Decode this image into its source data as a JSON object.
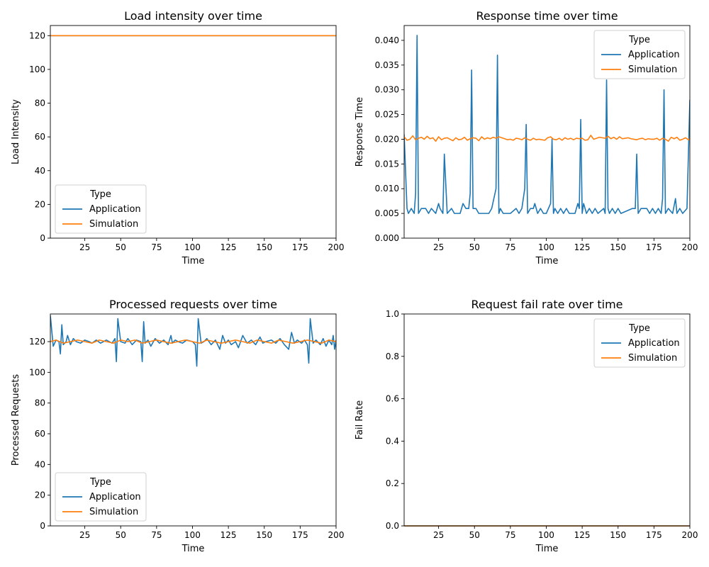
{
  "legend": {
    "title": "Type",
    "entries": [
      "Application",
      "Simulation"
    ]
  },
  "colors": {
    "Application": "#1f77b4",
    "Simulation": "#ff7f0e"
  },
  "chart_data": [
    {
      "type": "line",
      "title": "Load intensity over time",
      "xlabel": "Time",
      "ylabel": "Load Intensity",
      "xlim": [
        1,
        200
      ],
      "ylim": [
        0,
        126
      ],
      "xticks": [
        25,
        50,
        75,
        100,
        125,
        150,
        175,
        200
      ],
      "yticks": [
        0,
        20,
        40,
        60,
        80,
        100,
        120
      ],
      "legend_placement": "lower-left",
      "series": [
        {
          "name": "Application",
          "x": [
            1,
            200
          ],
          "y": [
            120,
            120
          ]
        },
        {
          "name": "Simulation",
          "x": [
            1,
            200
          ],
          "y": [
            120,
            120
          ]
        }
      ]
    },
    {
      "type": "line",
      "title": "Response time over time",
      "xlabel": "Time",
      "ylabel": "Response Time",
      "xlim": [
        1,
        200
      ],
      "ylim": [
        0,
        0.043
      ],
      "xticks": [
        25,
        50,
        75,
        100,
        125,
        150,
        175,
        200
      ],
      "yticks": [
        0.0,
        0.005,
        0.01,
        0.015,
        0.02,
        0.025,
        0.03,
        0.035,
        0.04
      ],
      "ytick_format": 3,
      "legend_placement": "upper-right",
      "series": [
        {
          "name": "Application",
          "x": [
            1,
            3,
            4,
            6,
            8,
            9,
            10,
            11,
            13,
            16,
            18,
            20,
            23,
            25,
            26,
            28,
            29,
            31,
            34,
            36,
            40,
            42,
            44,
            46,
            47,
            48,
            49,
            51,
            53,
            60,
            62,
            65,
            66,
            67,
            68,
            70,
            75,
            79,
            81,
            83,
            85,
            86,
            87,
            89,
            91,
            92,
            94,
            96,
            98,
            100,
            103,
            104,
            105,
            106,
            108,
            110,
            112,
            114,
            116,
            120,
            122,
            123,
            124,
            125,
            126,
            128,
            130,
            132,
            134,
            136,
            140,
            141,
            142,
            143,
            144,
            146,
            148,
            150,
            152,
            160,
            162,
            163,
            164,
            166,
            170,
            172,
            174,
            176,
            178,
            180,
            181,
            182,
            183,
            185,
            188,
            190,
            191,
            193,
            195,
            198,
            200
          ],
          "y": [
            0.021,
            0.006,
            0.005,
            0.006,
            0.005,
            0.009,
            0.041,
            0.005,
            0.006,
            0.006,
            0.005,
            0.006,
            0.005,
            0.007,
            0.006,
            0.005,
            0.017,
            0.005,
            0.006,
            0.005,
            0.005,
            0.007,
            0.006,
            0.006,
            0.009,
            0.034,
            0.006,
            0.006,
            0.005,
            0.005,
            0.006,
            0.01,
            0.037,
            0.005,
            0.006,
            0.005,
            0.005,
            0.006,
            0.005,
            0.006,
            0.01,
            0.023,
            0.005,
            0.006,
            0.006,
            0.007,
            0.005,
            0.006,
            0.005,
            0.005,
            0.007,
            0.02,
            0.005,
            0.006,
            0.005,
            0.006,
            0.005,
            0.006,
            0.005,
            0.005,
            0.007,
            0.006,
            0.024,
            0.005,
            0.007,
            0.005,
            0.006,
            0.005,
            0.006,
            0.005,
            0.006,
            0.005,
            0.032,
            0.006,
            0.005,
            0.006,
            0.005,
            0.006,
            0.005,
            0.006,
            0.006,
            0.017,
            0.005,
            0.006,
            0.006,
            0.005,
            0.006,
            0.005,
            0.006,
            0.005,
            0.008,
            0.03,
            0.005,
            0.006,
            0.005,
            0.008,
            0.005,
            0.006,
            0.005,
            0.006,
            0.028
          ]
        },
        {
          "name": "Simulation",
          "x": [
            1,
            3,
            5,
            7,
            9,
            11,
            13,
            15,
            17,
            19,
            21,
            23,
            25,
            27,
            29,
            31,
            33,
            35,
            37,
            39,
            41,
            43,
            45,
            47,
            49,
            51,
            53,
            55,
            57,
            59,
            61,
            63,
            65,
            67,
            69,
            71,
            73,
            75,
            77,
            79,
            81,
            83,
            85,
            87,
            89,
            91,
            93,
            95,
            97,
            99,
            101,
            103,
            105,
            107,
            109,
            111,
            113,
            115,
            117,
            119,
            121,
            123,
            125,
            127,
            129,
            131,
            133,
            135,
            137,
            139,
            141,
            143,
            145,
            147,
            149,
            151,
            153,
            155,
            157,
            159,
            161,
            163,
            165,
            167,
            169,
            171,
            173,
            175,
            177,
            179,
            181,
            183,
            185,
            187,
            189,
            191,
            193,
            195,
            197,
            199,
            200
          ],
          "y": [
            0.0205,
            0.0198,
            0.02,
            0.0207,
            0.0199,
            0.0202,
            0.0204,
            0.02,
            0.0206,
            0.0201,
            0.0203,
            0.0196,
            0.0205,
            0.0199,
            0.0202,
            0.0203,
            0.02,
            0.0197,
            0.0203,
            0.0199,
            0.02,
            0.0204,
            0.0198,
            0.0201,
            0.0203,
            0.0202,
            0.0197,
            0.0205,
            0.02,
            0.0203,
            0.0201,
            0.0204,
            0.0202,
            0.0205,
            0.0203,
            0.0201,
            0.0199,
            0.02,
            0.0198,
            0.0202,
            0.0201,
            0.0199,
            0.0203,
            0.02,
            0.0198,
            0.0202,
            0.0199,
            0.02,
            0.0199,
            0.0198,
            0.0203,
            0.0205,
            0.02,
            0.0199,
            0.0202,
            0.0198,
            0.0203,
            0.02,
            0.0202,
            0.0199,
            0.0202,
            0.0201,
            0.0202,
            0.0198,
            0.0199,
            0.0208,
            0.02,
            0.0202,
            0.0204,
            0.0203,
            0.0202,
            0.0206,
            0.0201,
            0.0204,
            0.02,
            0.0205,
            0.0201,
            0.0202,
            0.0203,
            0.0201,
            0.02,
            0.0199,
            0.0201,
            0.0202,
            0.0199,
            0.0201,
            0.02,
            0.02,
            0.0202,
            0.0198,
            0.0202,
            0.02,
            0.0196,
            0.0204,
            0.0201,
            0.0204,
            0.0198,
            0.02,
            0.0203,
            0.0199,
            0.0202
          ]
        }
      ]
    },
    {
      "type": "line",
      "title": "Processed requests over time",
      "xlabel": "Time",
      "ylabel": "Processed Requests",
      "xlim": [
        1,
        200
      ],
      "ylim": [
        0,
        138
      ],
      "xticks": [
        25,
        50,
        75,
        100,
        125,
        150,
        175,
        200
      ],
      "yticks": [
        0,
        20,
        40,
        60,
        80,
        100,
        120
      ],
      "legend_placement": "lower-left",
      "series": [
        {
          "name": "Application",
          "x": [
            1,
            3,
            5,
            7,
            8,
            9,
            10,
            12,
            13,
            15,
            17,
            19,
            22,
            25,
            28,
            30,
            33,
            36,
            40,
            44,
            46,
            47,
            48,
            50,
            53,
            55,
            58,
            61,
            64,
            65,
            66,
            67,
            69,
            71,
            74,
            77,
            80,
            83,
            85,
            86,
            88,
            90,
            93,
            96,
            100,
            102,
            103,
            104,
            106,
            108,
            110,
            113,
            116,
            119,
            121,
            123,
            125,
            127,
            130,
            132,
            135,
            138,
            141,
            144,
            147,
            149,
            151,
            155,
            158,
            161,
            164,
            167,
            169,
            171,
            173,
            176,
            178,
            180,
            181,
            182,
            184,
            186,
            189,
            191,
            193,
            195,
            197,
            198,
            199,
            200
          ],
          "y": [
            137,
            117,
            121,
            120,
            112,
            131,
            118,
            120,
            124,
            118,
            122,
            120,
            119,
            121,
            120,
            119,
            121,
            119,
            121,
            119,
            122,
            107,
            135,
            120,
            119,
            122,
            118,
            121,
            120,
            107,
            133,
            119,
            121,
            117,
            122,
            119,
            121,
            118,
            124,
            119,
            121,
            120,
            119,
            121,
            120,
            118,
            104,
            135,
            119,
            120,
            122,
            118,
            121,
            115,
            124,
            119,
            121,
            118,
            120,
            116,
            124,
            119,
            121,
            118,
            123,
            119,
            120,
            121,
            119,
            122,
            118,
            115,
            126,
            119,
            121,
            119,
            121,
            118,
            106,
            135,
            119,
            121,
            118,
            122,
            117,
            121,
            118,
            124,
            115,
            121
          ]
        },
        {
          "name": "Simulation",
          "x": [
            1,
            5,
            10,
            15,
            20,
            25,
            30,
            35,
            40,
            45,
            50,
            55,
            60,
            65,
            70,
            75,
            80,
            85,
            90,
            95,
            100,
            105,
            110,
            115,
            120,
            125,
            130,
            135,
            140,
            145,
            150,
            155,
            160,
            165,
            170,
            175,
            180,
            185,
            190,
            195,
            200
          ],
          "y": [
            120,
            121,
            119,
            120,
            121,
            120,
            119,
            121,
            120,
            119,
            121,
            120,
            121,
            119,
            120,
            121,
            120,
            119,
            120,
            121,
            120,
            119,
            121,
            120,
            119,
            120,
            121,
            120,
            119,
            121,
            120,
            119,
            121,
            120,
            119,
            120,
            121,
            120,
            119,
            121,
            120
          ]
        }
      ]
    },
    {
      "type": "line",
      "title": "Request fail rate over time",
      "xlabel": "Time",
      "ylabel": "Fail Rate",
      "xlim": [
        1,
        200
      ],
      "ylim": [
        0,
        1
      ],
      "xticks": [
        25,
        50,
        75,
        100,
        125,
        150,
        175,
        200
      ],
      "yticks": [
        0.0,
        0.2,
        0.4,
        0.6,
        0.8,
        1.0
      ],
      "ytick_format": 1,
      "legend_placement": "upper-right",
      "series": [
        {
          "name": "Application",
          "x": [
            1,
            200
          ],
          "y": [
            0,
            0
          ]
        },
        {
          "name": "Simulation",
          "x": [
            1,
            200
          ],
          "y": [
            0,
            0
          ]
        }
      ]
    }
  ]
}
